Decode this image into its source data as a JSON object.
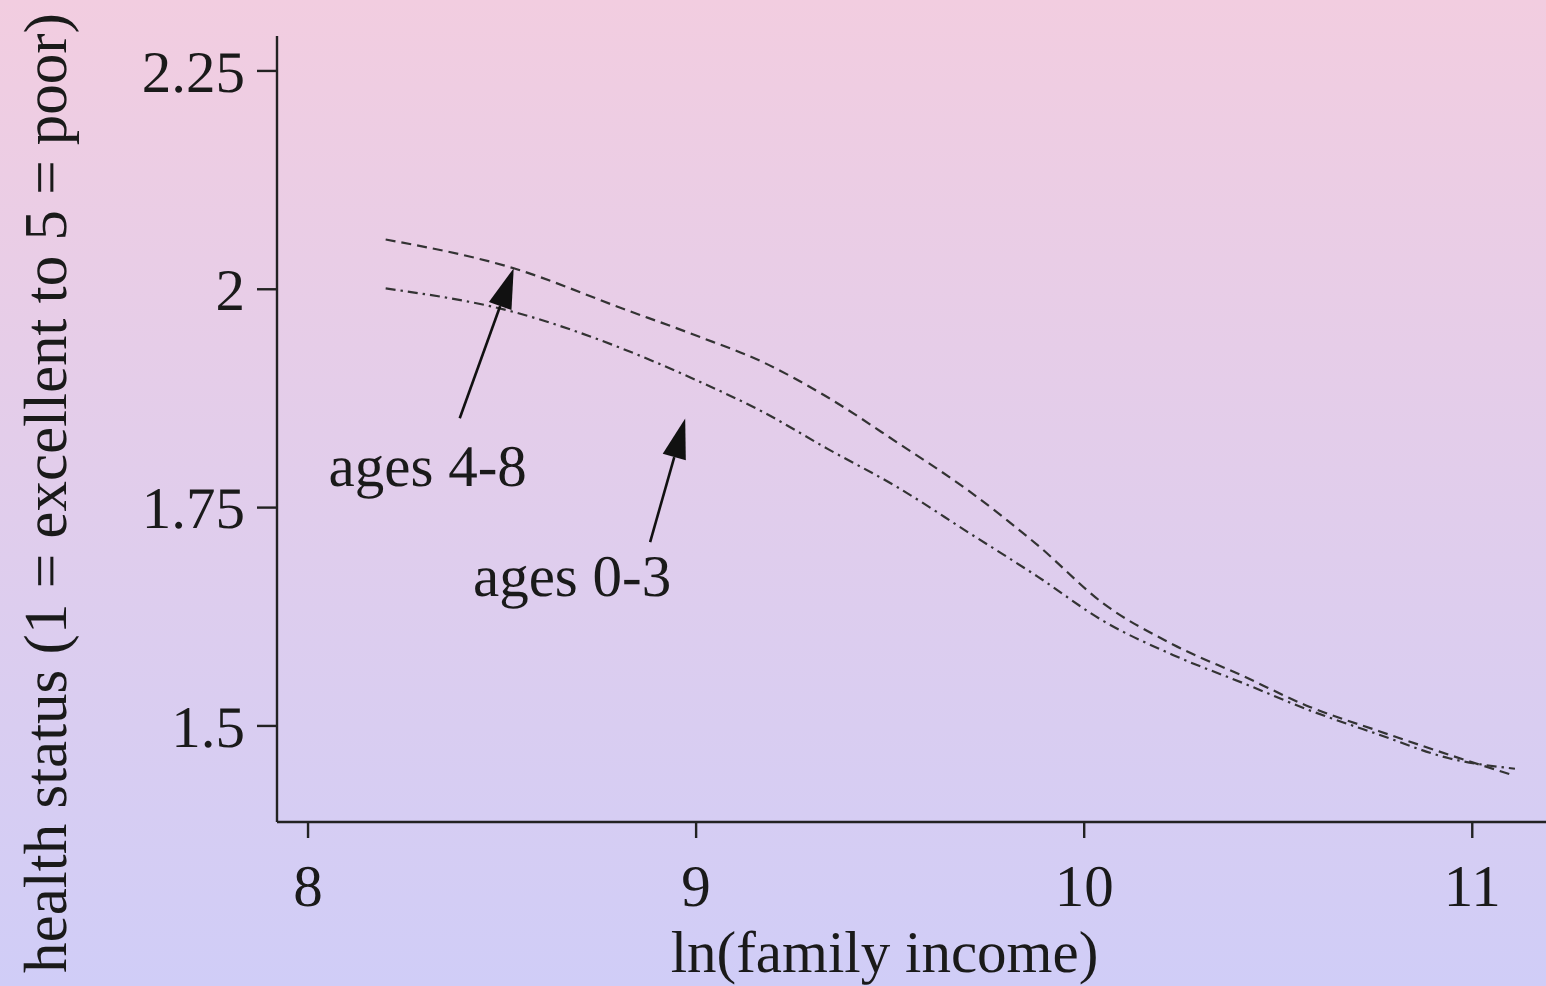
{
  "chart_data": {
    "type": "line",
    "xlabel": "ln(family income)",
    "ylabel": "health status (1 = excellent to 5 = poor)",
    "x": [
      8.2,
      8.53,
      8.81,
      9.0,
      9.17,
      9.34,
      9.52,
      9.7,
      9.88,
      10.05,
      10.23,
      10.41,
      10.58,
      10.76,
      10.94,
      11.11
    ],
    "series": [
      {
        "color": "#333333",
        "line_style": "dashed",
        "values": [
          2.057,
          2.024,
          1.978,
          1.947,
          1.917,
          1.876,
          1.824,
          1.77,
          1.707,
          1.64,
          1.593,
          1.557,
          1.522,
          1.494,
          1.467,
          1.443
        ]
      },
      {
        "color": "#333333",
        "line_style": "dashdot",
        "values": [
          2.001,
          1.974,
          1.932,
          1.896,
          1.86,
          1.817,
          1.773,
          1.722,
          1.671,
          1.62,
          1.581,
          1.549,
          1.518,
          1.49,
          1.463,
          1.451
        ]
      }
    ],
    "xlim": [
      7.92,
      11.19
    ],
    "ylim": [
      1.39,
      2.29
    ],
    "xticks": [
      8,
      9,
      10,
      11
    ],
    "yticks": [
      1.5,
      1.75,
      2,
      2.25
    ],
    "annotations": [
      {
        "text": "ages 4-8",
        "x": 8.53,
        "y": 2.024
      },
      {
        "text": "ages 0-3",
        "x": 9.0,
        "y": 1.896
      }
    ]
  }
}
